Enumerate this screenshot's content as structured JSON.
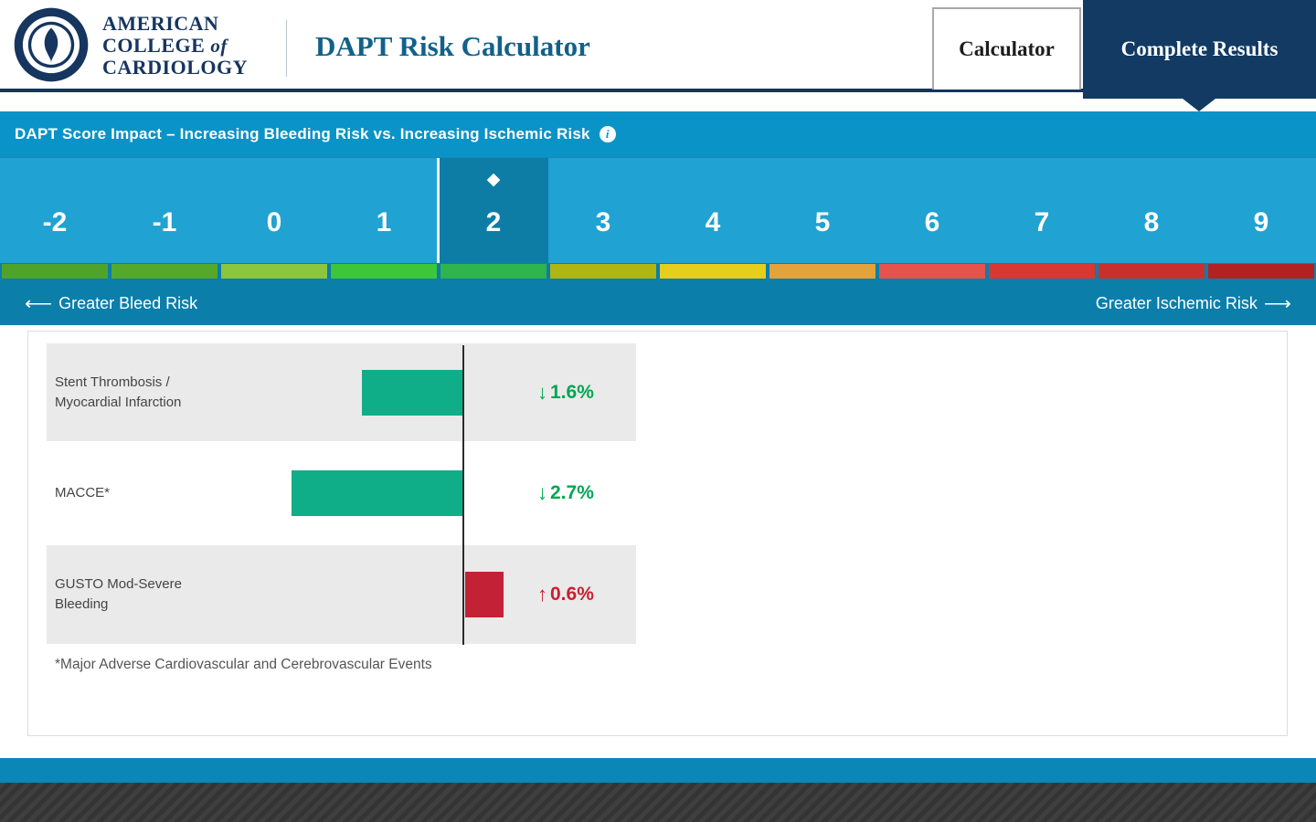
{
  "header": {
    "brand": {
      "line1": "AMERICAN",
      "line2": "COLLEGE",
      "line2_of": "of",
      "line3": "CARDIOLOGY"
    },
    "title": "DAPT Risk Calculator",
    "tabs": [
      {
        "id": "calculator",
        "label": "Calculator",
        "active": false
      },
      {
        "id": "complete-results",
        "label": "Complete Results",
        "active": true
      }
    ]
  },
  "banner": {
    "title": "DAPT Score Impact – Increasing Bleeding Risk vs. Increasing Ischemic Risk",
    "info_icon": "i"
  },
  "score_scale": {
    "values": [
      "-2",
      "-1",
      "0",
      "1",
      "2",
      "3",
      "4",
      "5",
      "6",
      "7",
      "8",
      "9"
    ],
    "selected_value": "2",
    "selected_index": 4,
    "marker_glyph": "◆",
    "segment_colors": [
      "#4FA32B",
      "#55A82C",
      "#8CC63F",
      "#3DC639",
      "#2FB44E",
      "#AFB512",
      "#E5CE1C",
      "#E2A23C",
      "#E4534C",
      "#D93732",
      "#C8312B",
      "#B22222"
    ],
    "left_arrow": "⟵",
    "left_label": "Greater Bleed Risk",
    "right_label": "Greater Ischemic Risk",
    "right_arrow": "⟶"
  },
  "chart_data": {
    "type": "bar",
    "orientation": "horizontal-diverging",
    "zero_axis": "center",
    "unit": "%",
    "categories": [
      "Stent Thrombosis / Myocardial Infarction",
      "MACCE*",
      "GUSTO Mod-Severe Bleeding"
    ],
    "values": [
      -1.6,
      -2.7,
      0.6
    ],
    "value_labels": [
      "1.6%",
      "2.7%",
      "0.6%"
    ],
    "directions": [
      "down",
      "down",
      "up"
    ],
    "down_arrow": "↓",
    "up_arrow": "↑",
    "decrease_color": "#10AE88",
    "increase_color": "#C32135",
    "decrease_text_color": "#00A651",
    "increase_text_color": "#C8202F",
    "footnote": "*Major Adverse Cardiovascular and Cerebrovascular Events"
  },
  "colors": {
    "navy": "#16355F",
    "banner_blue": "#0A93C6",
    "scale_blue": "#20A2D2",
    "selected_blue": "#0D7DA6",
    "risk_bar_blue": "#0B7EAA",
    "bottom_strip_blue": "#0A87B6",
    "footer_gray": "#3A3A3A",
    "row_gray": "#EAEAEA",
    "title_blue": "#11618A"
  }
}
